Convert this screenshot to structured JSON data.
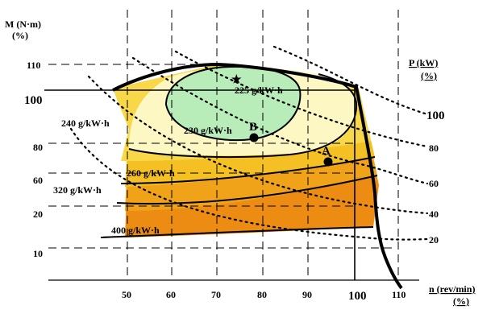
{
  "y_axis": {
    "label": "M (N·m)",
    "unit": "(%)",
    "ticks": [
      "110",
      "80",
      "60",
      "20",
      "10"
    ],
    "big_tick": "100"
  },
  "x_axis": {
    "label": "n (rev/min)",
    "unit": "(%)",
    "ticks": [
      "50",
      "60",
      "70",
      "80",
      "90",
      "110"
    ],
    "big_tick": "100"
  },
  "power_axis": {
    "label": "P (kW)",
    "unit": "(%)",
    "levels": [
      "100",
      "80",
      "60",
      "40",
      "20"
    ]
  },
  "efficiency_contours": [
    "225 g/kW·h",
    "230 g/kW·h",
    "240 g/kW·h",
    "260 g/kW·h",
    "320 g/kW·h",
    "400 g/kW·h"
  ],
  "points": {
    "A": "A",
    "B": "B",
    "star": "★"
  },
  "colors": {
    "zone_225": "#b8ecb9",
    "zone_230": "#fdf7c4",
    "zone_240": "#f8d848",
    "zone_260": "#f4c024",
    "zone_320": "#f0a218",
    "zone_400": "#ec8c12"
  }
}
